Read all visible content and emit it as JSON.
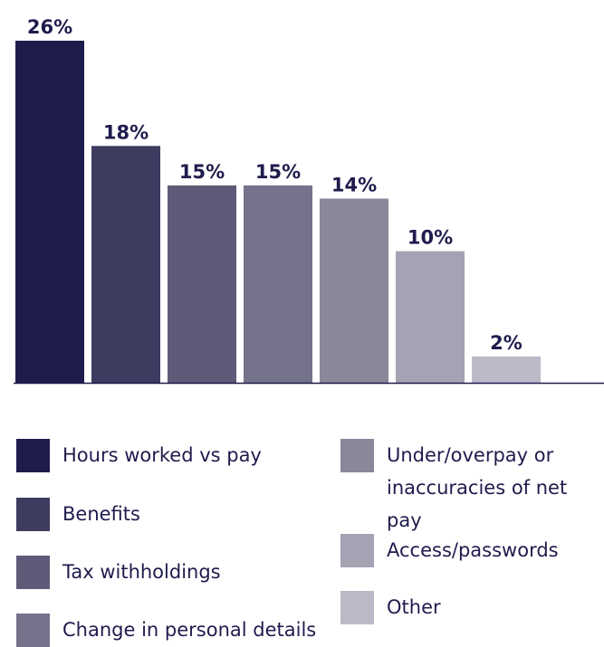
{
  "chart_data": {
    "type": "bar",
    "categories": [
      "Hours worked vs pay",
      "Benefits",
      "Tax withholdings",
      "Change in personal details",
      "Under/overpay or inaccuracies of net pay",
      "Access/passwords",
      "Other"
    ],
    "values": [
      26,
      18,
      15,
      15,
      14,
      10,
      2
    ],
    "value_labels": [
      "26%",
      "18%",
      "15%",
      "15%",
      "14%",
      "10%",
      "2%"
    ],
    "unit": "%",
    "title": "",
    "xlabel": "",
    "ylabel": "",
    "ylim": [
      0,
      26
    ],
    "grid": false,
    "legend_position": "bottom",
    "colors": [
      "#1e1c4c",
      "#3e3b60",
      "#5e5a77",
      "#75728b",
      "#8b8799",
      "#a5a2b3",
      "#bcbac8"
    ],
    "label_color": "#1f1c4d",
    "axis_color": "#1f1c4d"
  },
  "legend": {
    "items": [
      {
        "label": "Hours worked vs pay"
      },
      {
        "label": "Benefits"
      },
      {
        "label": "Tax withholdings"
      },
      {
        "label": "Change in personal details"
      },
      {
        "label": "Under/overpay or inaccuracies of net pay"
      },
      {
        "label": "Access/passwords"
      },
      {
        "label": "Other"
      }
    ]
  }
}
